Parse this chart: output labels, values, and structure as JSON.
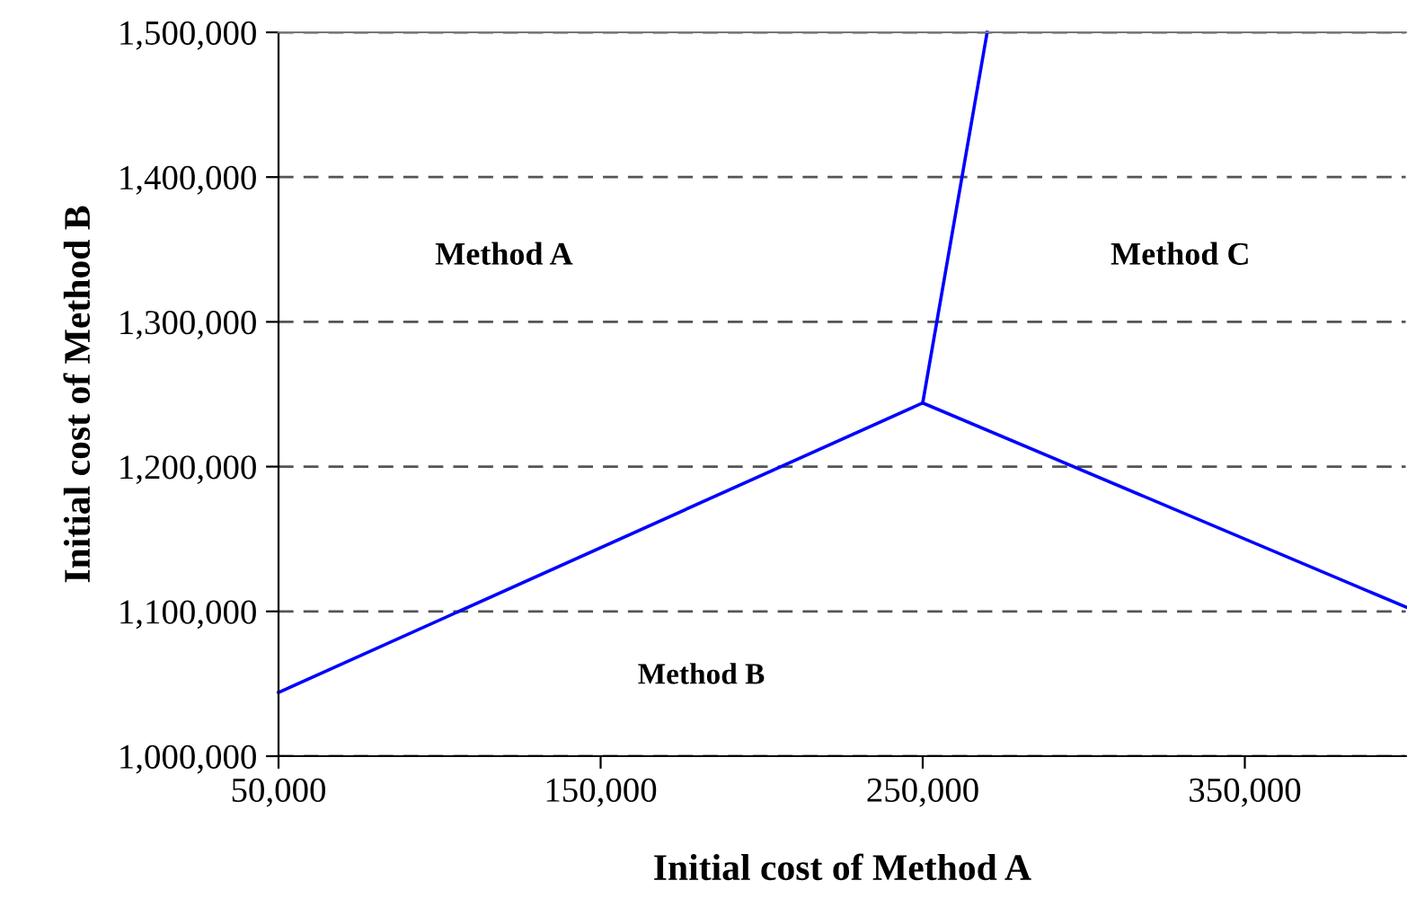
{
  "chart_data": {
    "type": "line",
    "xlabel": "Initial cost of Method A",
    "ylabel": "Initial cost of Method B",
    "series": [
      {
        "color": "#0000ff",
        "x": [
          50000,
          250000
        ],
        "values": [
          1044000,
          1244000
        ]
      },
      {
        "color": "#0000ff",
        "x": [
          250000,
          400000
        ],
        "values": [
          1244000,
          1103000
        ]
      },
      {
        "color": "#0000ff",
        "x": [
          250000,
          270000
        ],
        "values": [
          1244000,
          1500000
        ]
      }
    ],
    "annotations": [
      "Method A",
      "Method C",
      "Method B"
    ],
    "xlim": [
      50000,
      400000
    ],
    "xticks": [
      {
        "value": 50000,
        "label": "50,000"
      },
      {
        "value": 150000,
        "label": "150,000"
      },
      {
        "value": 250000,
        "label": "250,000"
      },
      {
        "value": 350000,
        "label": "350,000"
      }
    ],
    "ylim": [
      1000000,
      1500000
    ],
    "yticks": [
      {
        "value": 1000000,
        "label": "1,000,000"
      },
      {
        "value": 1100000,
        "label": "1,100,000"
      },
      {
        "value": 1200000,
        "label": "1,200,000"
      },
      {
        "value": 1300000,
        "label": "1,300,000"
      },
      {
        "value": 1400000,
        "label": "1,400,000"
      },
      {
        "value": 1500000,
        "label": "1,500,000"
      }
    ],
    "grid": "y",
    "marker": "none",
    "line_style": "solid",
    "legend": false
  }
}
